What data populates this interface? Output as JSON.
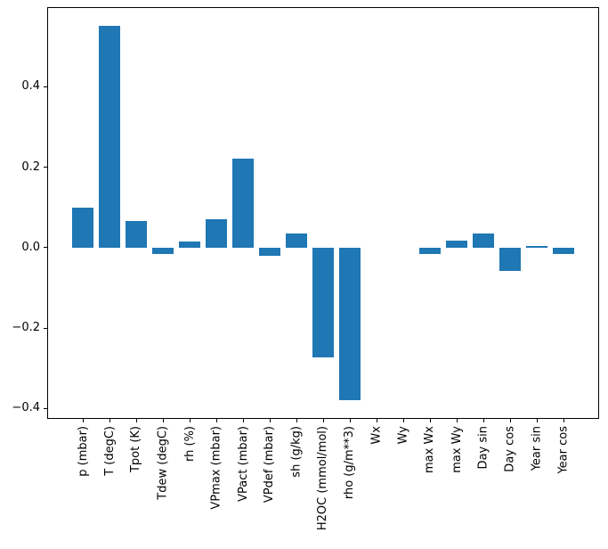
{
  "chart_data": {
    "type": "bar",
    "title": "",
    "xlabel": "",
    "ylabel": "",
    "categories": [
      "p (mbar)",
      "T (degC)",
      "Tpot (K)",
      "Tdew (degC)",
      "rh (%)",
      "VPmax (mbar)",
      "VPact (mbar)",
      "VPdef (mbar)",
      "sh (g/kg)",
      "H2OC (mmol/mol)",
      "rho (g/m**3)",
      "Wx",
      "Wy",
      "max Wx",
      "max Wy",
      "Day sin",
      "Day cos",
      "Year sin",
      "Year cos"
    ],
    "values": [
      0.099,
      0.552,
      0.065,
      -0.016,
      0.014,
      0.07,
      0.221,
      -0.021,
      0.036,
      -0.272,
      -0.379,
      0.0,
      0.0,
      -0.017,
      0.017,
      0.036,
      -0.057,
      0.005,
      -0.015
    ],
    "bar_color": "#1f77b4",
    "axis_color": "#000000",
    "background_color": "#ffffff",
    "ylim": [
      -0.426,
      0.598
    ],
    "yticks": [
      0.4,
      0.2,
      0.0,
      -0.2,
      -0.4
    ],
    "ytick_labels": [
      "0.4",
      "0.2",
      "0.0",
      "−0.2",
      "−0.4"
    ],
    "grid": false,
    "legend": false,
    "x_tick_label_rotation_deg": 90
  }
}
